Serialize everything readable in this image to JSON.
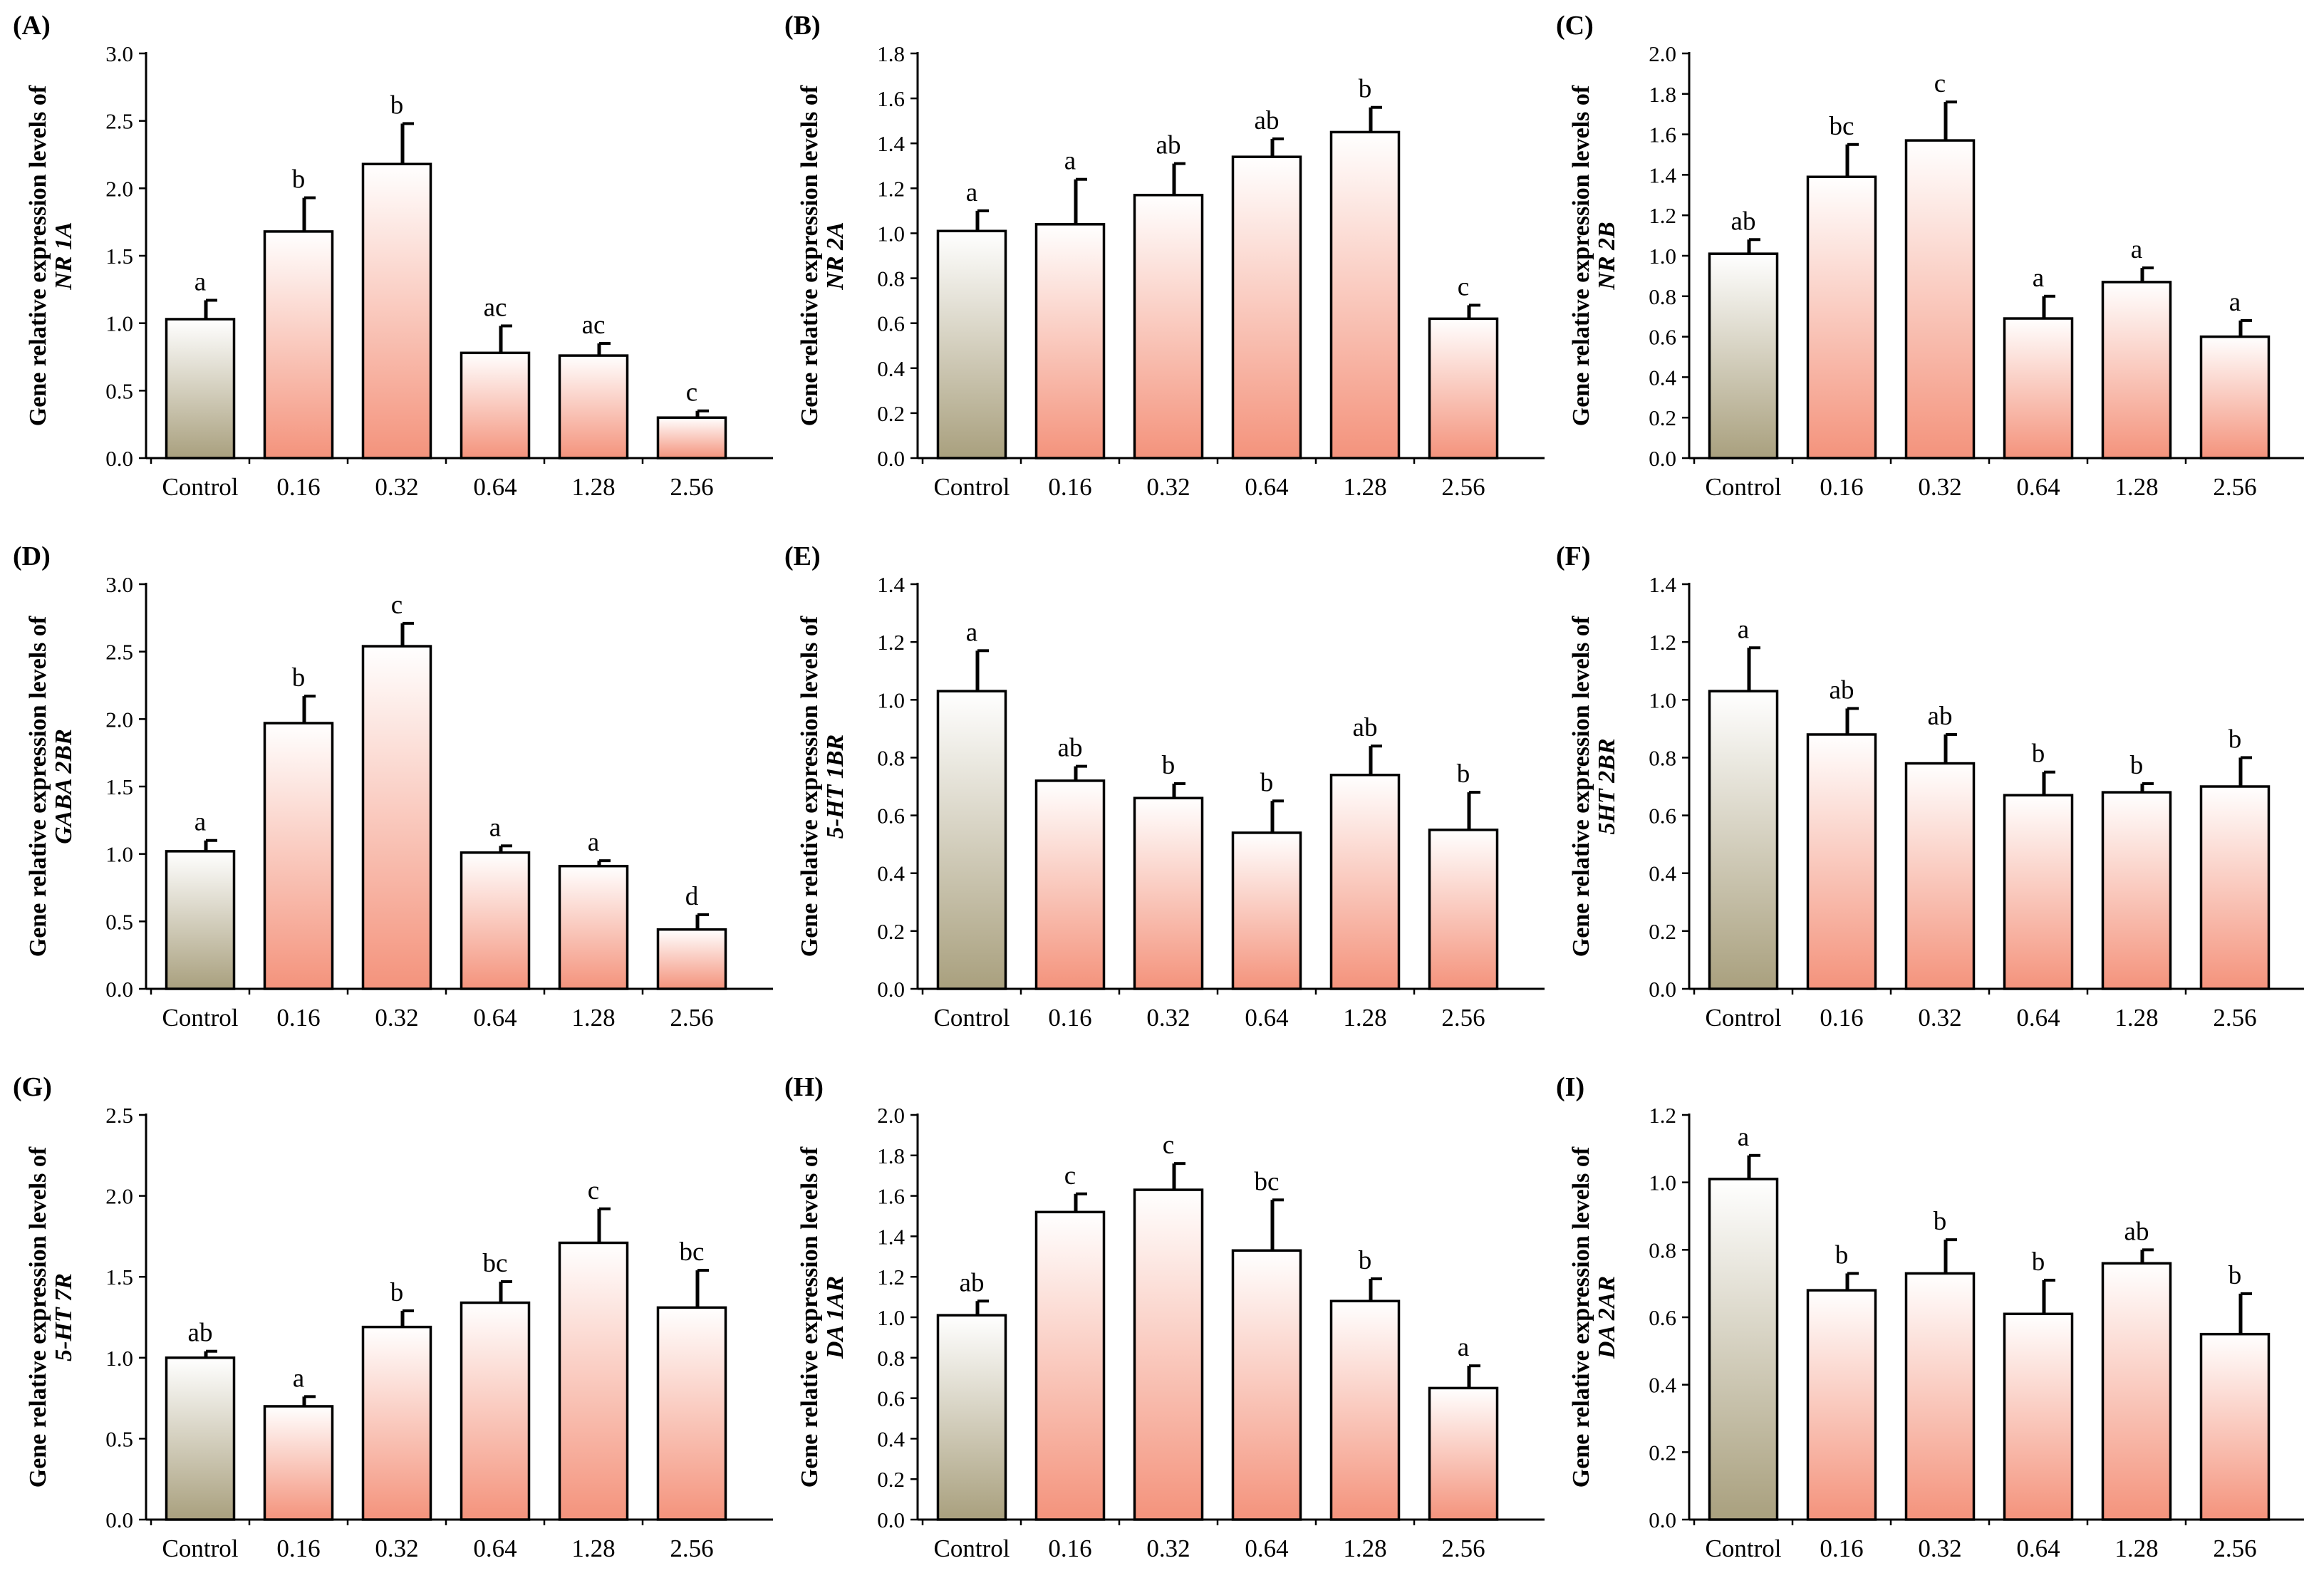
{
  "figure_title": "Gene relative expression levels",
  "chart_data": [
    {
      "id": "A",
      "type": "bar",
      "panel_label": "(A)",
      "ylabel": "Gene relative expression levels of",
      "gene": "NR 1A",
      "ylim": [
        0,
        3.0
      ],
      "ticks": [
        "0.0",
        "0.5",
        "1.0",
        "1.5",
        "2.0",
        "2.5",
        "3.0"
      ],
      "categories": [
        "Control",
        "0.16",
        "0.32",
        "0.64",
        "1.28",
        "2.56"
      ],
      "values": [
        1.03,
        1.68,
        2.18,
        0.78,
        0.76,
        0.3
      ],
      "errors": [
        0.14,
        0.25,
        0.3,
        0.2,
        0.09,
        0.05
      ],
      "significance": [
        "a",
        "b",
        "b",
        "ac",
        "ac",
        "c"
      ]
    },
    {
      "id": "B",
      "type": "bar",
      "panel_label": "(B)",
      "ylabel": "Gene relative expression levels of",
      "gene": "NR 2A",
      "ylim": [
        0,
        1.8
      ],
      "ticks": [
        "0.0",
        "0.2",
        "0.4",
        "0.6",
        "0.8",
        "1.0",
        "1.2",
        "1.4",
        "1.6",
        "1.8"
      ],
      "categories": [
        "Control",
        "0.16",
        "0.32",
        "0.64",
        "1.28",
        "2.56"
      ],
      "values": [
        1.01,
        1.04,
        1.17,
        1.34,
        1.45,
        0.62
      ],
      "errors": [
        0.09,
        0.2,
        0.14,
        0.08,
        0.11,
        0.06
      ],
      "significance": [
        "a",
        "a",
        "ab",
        "ab",
        "b",
        "c"
      ]
    },
    {
      "id": "C",
      "type": "bar",
      "panel_label": "(C)",
      "ylabel": "Gene relative expression levels of",
      "gene": "NR 2B",
      "ylim": [
        0,
        2.0
      ],
      "ticks": [
        "0.0",
        "0.2",
        "0.4",
        "0.6",
        "0.8",
        "1.0",
        "1.2",
        "1.4",
        "1.6",
        "1.8",
        "2.0"
      ],
      "categories": [
        "Control",
        "0.16",
        "0.32",
        "0.64",
        "1.28",
        "2.56"
      ],
      "values": [
        1.01,
        1.39,
        1.57,
        0.69,
        0.87,
        0.6
      ],
      "errors": [
        0.07,
        0.16,
        0.19,
        0.11,
        0.07,
        0.08
      ],
      "significance": [
        "ab",
        "bc",
        "c",
        "a",
        "a",
        "a"
      ]
    },
    {
      "id": "D",
      "type": "bar",
      "panel_label": "(D)",
      "ylabel": "Gene relative expression levels of",
      "gene": "GABA 2BR",
      "ylim": [
        0,
        3.0
      ],
      "ticks": [
        "0.0",
        "0.5",
        "1.0",
        "1.5",
        "2.0",
        "2.5",
        "3.0"
      ],
      "categories": [
        "Control",
        "0.16",
        "0.32",
        "0.64",
        "1.28",
        "2.56"
      ],
      "values": [
        1.02,
        1.97,
        2.54,
        1.01,
        0.91,
        0.44
      ],
      "errors": [
        0.08,
        0.2,
        0.17,
        0.05,
        0.04,
        0.11
      ],
      "significance": [
        "a",
        "b",
        "c",
        "a",
        "a",
        "d"
      ]
    },
    {
      "id": "E",
      "type": "bar",
      "panel_label": "(E)",
      "ylabel": "Gene relative expression levels of",
      "gene": "5-HT 1BR",
      "ylim": [
        0,
        1.4
      ],
      "ticks": [
        "0.0",
        "0.2",
        "0.4",
        "0.6",
        "0.8",
        "1.0",
        "1.2",
        "1.4"
      ],
      "categories": [
        "Control",
        "0.16",
        "0.32",
        "0.64",
        "1.28",
        "2.56"
      ],
      "values": [
        1.03,
        0.72,
        0.66,
        0.54,
        0.74,
        0.55
      ],
      "errors": [
        0.14,
        0.05,
        0.05,
        0.11,
        0.1,
        0.13
      ],
      "significance": [
        "a",
        "ab",
        "b",
        "b",
        "ab",
        "b"
      ]
    },
    {
      "id": "F",
      "type": "bar",
      "panel_label": "(F)",
      "ylabel": "Gene relative expression levels of",
      "gene": "5HT 2BR",
      "ylim": [
        0,
        1.4
      ],
      "ticks": [
        "0.0",
        "0.2",
        "0.4",
        "0.6",
        "0.8",
        "1.0",
        "1.2",
        "1.4"
      ],
      "categories": [
        "Control",
        "0.16",
        "0.32",
        "0.64",
        "1.28",
        "2.56"
      ],
      "values": [
        1.03,
        0.88,
        0.78,
        0.67,
        0.68,
        0.7
      ],
      "errors": [
        0.15,
        0.09,
        0.1,
        0.08,
        0.03,
        0.1
      ],
      "significance": [
        "a",
        "ab",
        "ab",
        "b",
        "b",
        "b"
      ]
    },
    {
      "id": "G",
      "type": "bar",
      "panel_label": "(G)",
      "ylabel": "Gene relative expression levels of",
      "gene": "5-HT 7R",
      "ylim": [
        0,
        2.5
      ],
      "ticks": [
        "0.0",
        "0.5",
        "1.0",
        "1.5",
        "2.0",
        "2.5"
      ],
      "categories": [
        "Control",
        "0.16",
        "0.32",
        "0.64",
        "1.28",
        "2.56"
      ],
      "values": [
        1.0,
        0.7,
        1.19,
        1.34,
        1.71,
        1.31
      ],
      "errors": [
        0.04,
        0.06,
        0.1,
        0.13,
        0.21,
        0.23
      ],
      "significance": [
        "ab",
        "a",
        "b",
        "bc",
        "c",
        "bc"
      ]
    },
    {
      "id": "H",
      "type": "bar",
      "panel_label": "(H)",
      "ylabel": "Gene relative expression levels of",
      "gene": "DA 1AR",
      "ylim": [
        0,
        2.0
      ],
      "ticks": [
        "0.0",
        "0.2",
        "0.4",
        "0.6",
        "0.8",
        "1.0",
        "1.2",
        "1.4",
        "1.6",
        "1.8",
        "2.0"
      ],
      "categories": [
        "Control",
        "0.16",
        "0.32",
        "0.64",
        "1.28",
        "2.56"
      ],
      "values": [
        1.01,
        1.52,
        1.63,
        1.33,
        1.08,
        0.65
      ],
      "errors": [
        0.07,
        0.09,
        0.13,
        0.25,
        0.11,
        0.11
      ],
      "significance": [
        "ab",
        "c",
        "c",
        "bc",
        "b",
        "a"
      ]
    },
    {
      "id": "I",
      "type": "bar",
      "panel_label": "(I)",
      "ylabel": "Gene relative expression levels of",
      "gene": "DA 2AR",
      "ylim": [
        0,
        1.2
      ],
      "ticks": [
        "0.0",
        "0.2",
        "0.4",
        "0.6",
        "0.8",
        "1.0",
        "1.2"
      ],
      "categories": [
        "Control",
        "0.16",
        "0.32",
        "0.64",
        "1.28",
        "2.56"
      ],
      "values": [
        1.01,
        0.68,
        0.73,
        0.61,
        0.76,
        0.55
      ],
      "errors": [
        0.07,
        0.05,
        0.1,
        0.1,
        0.04,
        0.12
      ],
      "significance": [
        "a",
        "b",
        "b",
        "b",
        "ab",
        "b"
      ]
    }
  ],
  "colors": {
    "axis": "#000000",
    "control_top": "#ffffff",
    "control_bottom": "#a9a07e",
    "treatment_top": "#ffffff",
    "treatment_bottom": "#f4937c"
  }
}
